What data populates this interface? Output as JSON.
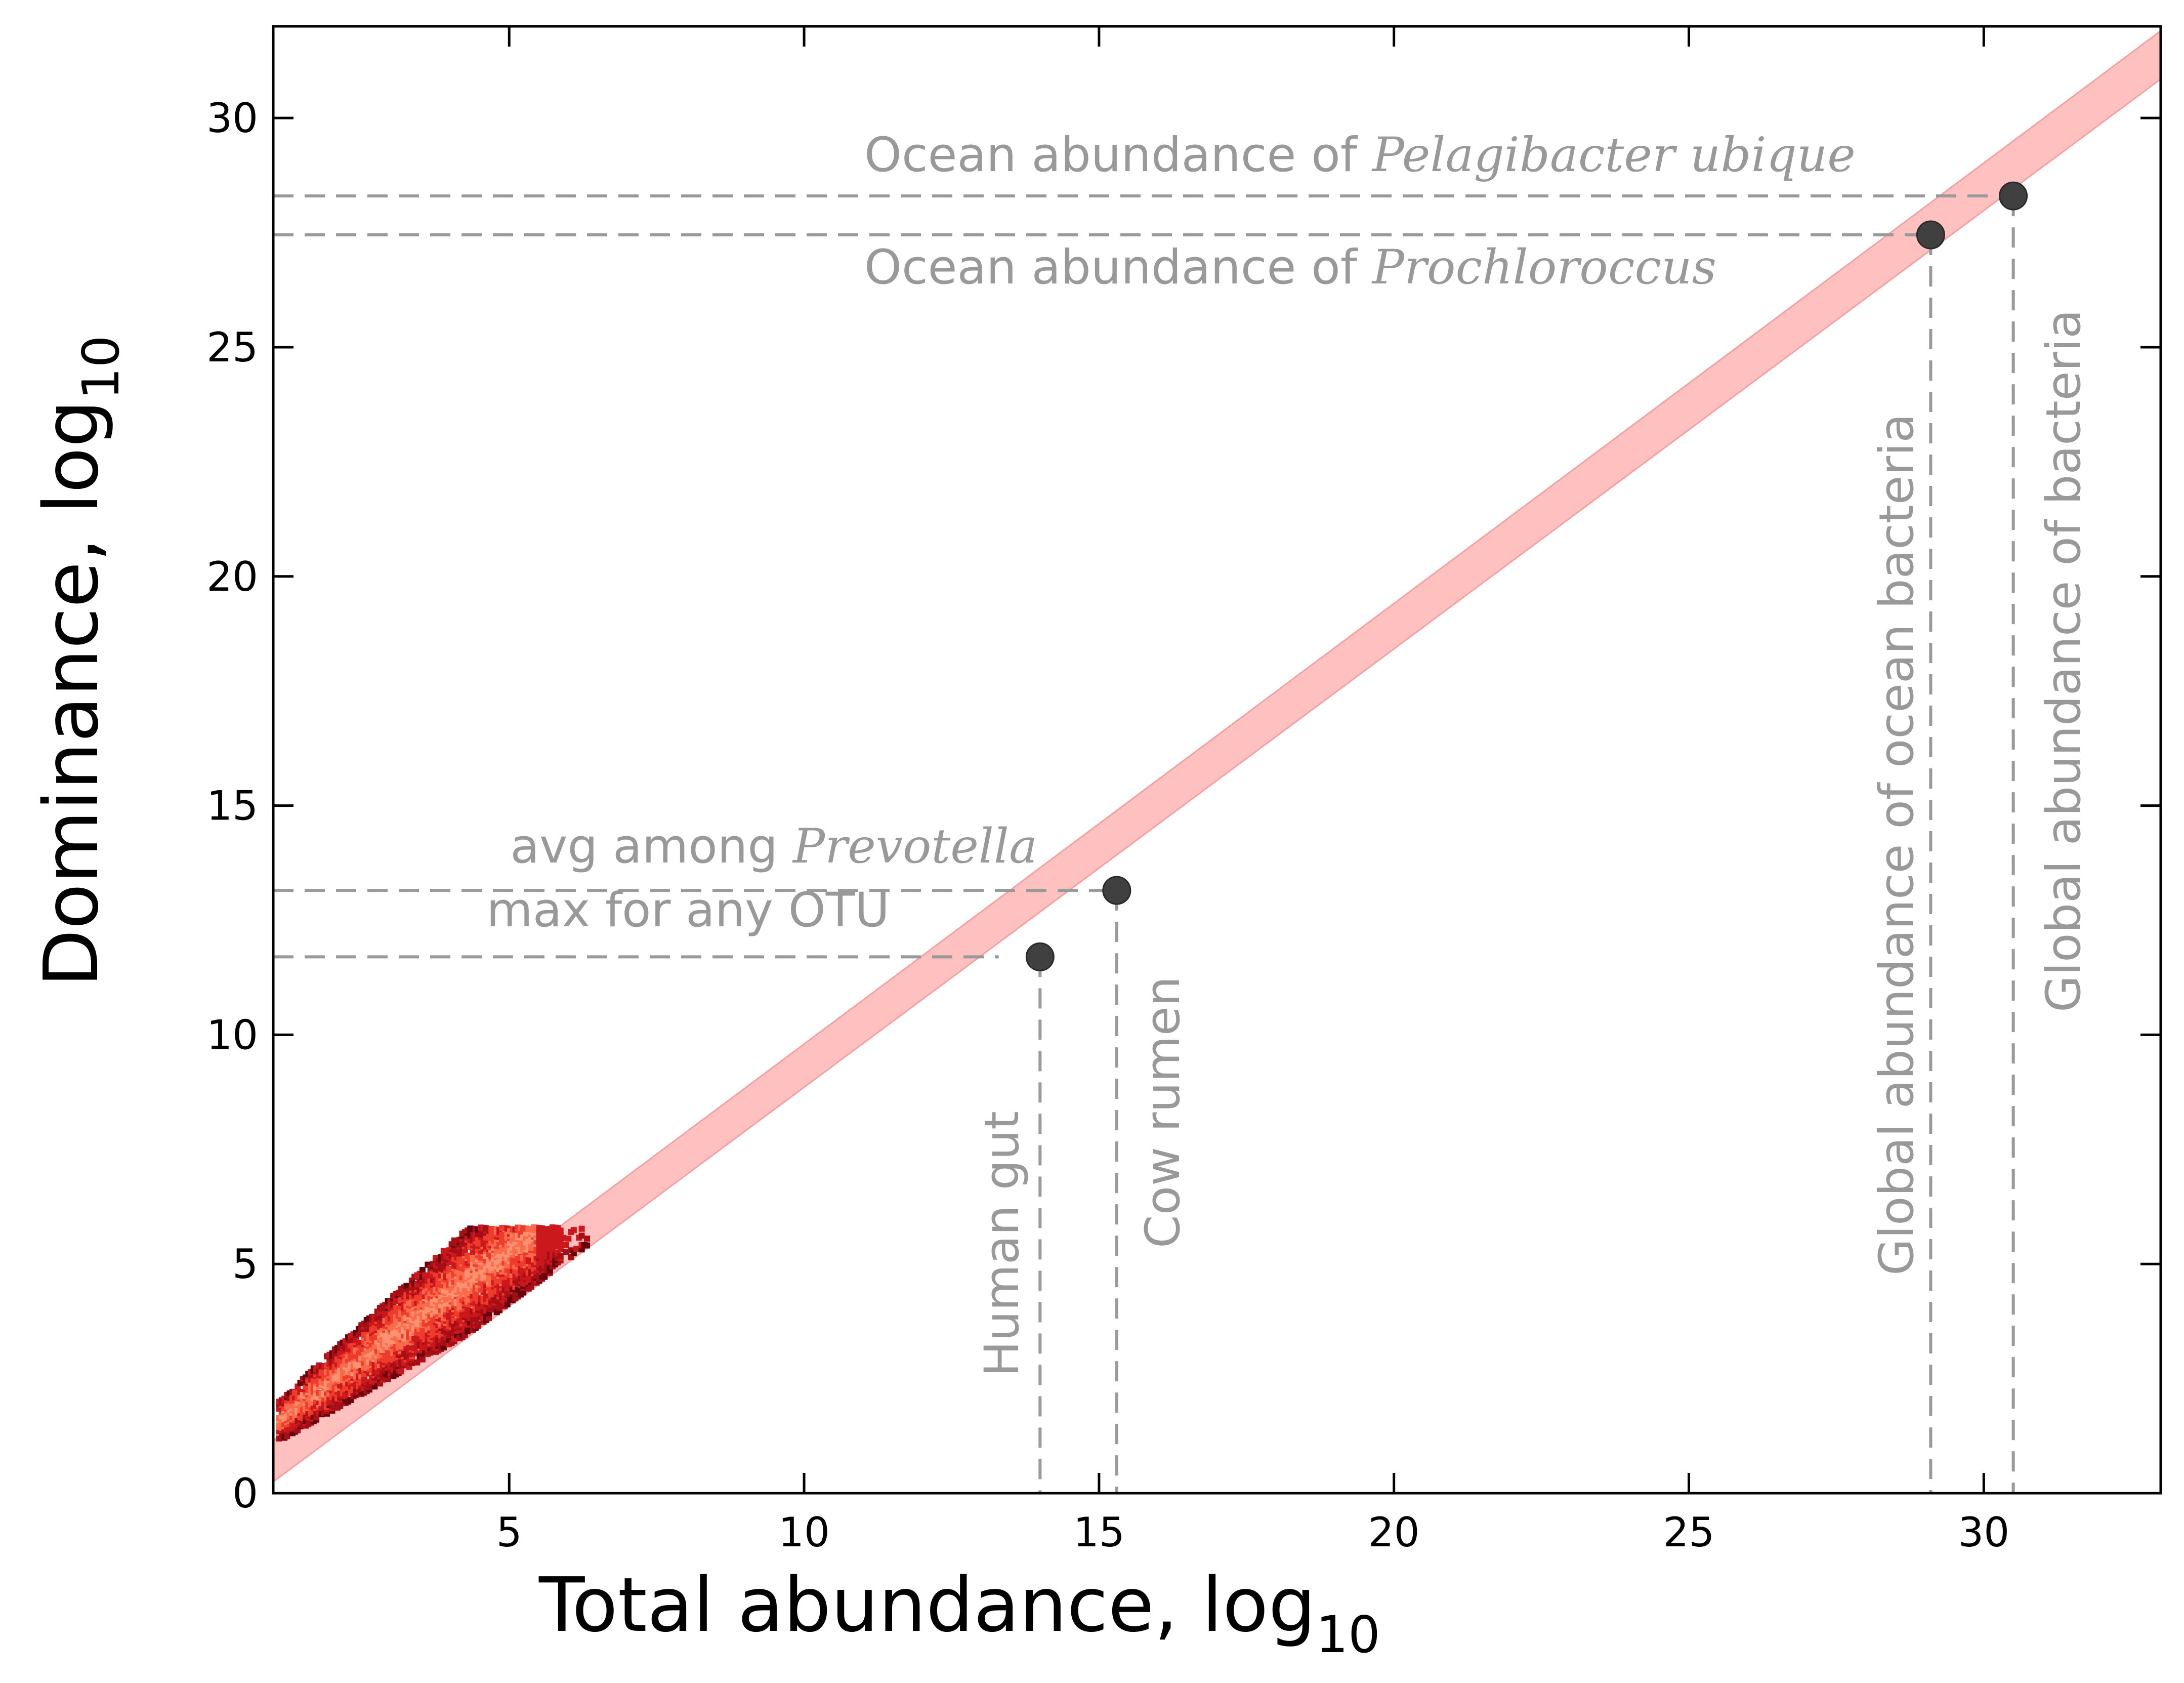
{
  "chart_data": {
    "type": "scatter",
    "xlabel": "Total abundance, log",
    "xlabel_sub": "10",
    "ylabel": "Dominance, log",
    "ylabel_sub": "10",
    "xlim": [
      1,
      33
    ],
    "ylim": [
      0,
      32
    ],
    "xticks": [
      5,
      10,
      15,
      20,
      25,
      30
    ],
    "yticks": [
      0,
      5,
      10,
      15,
      20,
      25,
      30
    ],
    "grid": false,
    "band": {
      "label": "",
      "color": "#ffc0c0",
      "lower": [
        [
          1,
          0.25
        ],
        [
          33,
          30.85
        ]
      ],
      "upper": [
        [
          1,
          1.15
        ],
        [
          33,
          31.9
        ]
      ]
    },
    "points": [
      {
        "x": 14.0,
        "y": 11.7,
        "label": "Human gut"
      },
      {
        "x": 15.3,
        "y": 13.15,
        "label": "Cow rumen"
      },
      {
        "x": 29.1,
        "y": 27.45,
        "label": "Global abundance of ocean bacteria"
      },
      {
        "x": 30.5,
        "y": 28.3,
        "label": "Global abundance of bacteria"
      }
    ],
    "hlines": [
      {
        "y": 28.3,
        "xmax": 30.5
      },
      {
        "y": 27.45,
        "xmax": 29.1
      },
      {
        "y": 13.15,
        "xmax": 15.3
      },
      {
        "y": 11.7,
        "xmax": 13.3
      }
    ],
    "vlines": [
      {
        "x": 14.0,
        "ymax": 11.7
      },
      {
        "x": 15.3,
        "ymax": 13.15
      },
      {
        "x": 29.1,
        "ymax": 27.45
      },
      {
        "x": 30.5,
        "ymax": 28.3
      }
    ],
    "annotations": [
      {
        "text": "Ocean abundance of ",
        "italic": "Pelagibacter ubique"
      },
      {
        "text": "Ocean abundance of ",
        "italic": "Prochloroccus"
      },
      {
        "text": "avg among ",
        "italic": "Prevotella"
      },
      {
        "text": "max for any OTU",
        "italic": ""
      }
    ],
    "density": {
      "description": "hexbin density of OTUs",
      "x_range": [
        1.1,
        6.4
      ],
      "y_range": [
        0.3,
        5.8
      ],
      "colors": [
        "#67000d",
        "#a50f15",
        "#cb181d",
        "#ef3b2c",
        "#fb6a4a",
        "#fc9272"
      ]
    },
    "colors": {
      "band": "#ffc0c0",
      "points": "#404040",
      "guides": "#999999",
      "annotation_text": "#999999"
    }
  }
}
